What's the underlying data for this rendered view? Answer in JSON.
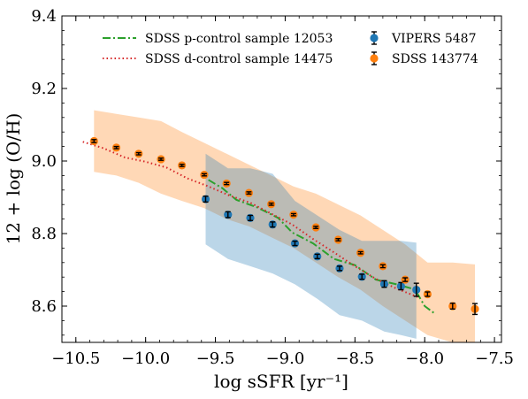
{
  "chart_data": {
    "type": "scatter",
    "xlabel": "log sSFR [yr⁻¹]",
    "ylabel": "12 + log (O/H)",
    "xlim": [
      -10.6,
      -7.45
    ],
    "ylim": [
      8.5,
      9.4
    ],
    "xticks": [
      -10.5,
      -10.0,
      -9.5,
      -9.0,
      -8.5,
      -8.0,
      -7.5
    ],
    "xtick_labels": [
      "−10.5",
      "−10.0",
      "−9.5",
      "−9.0",
      "−8.5",
      "−8.0",
      "−7.5"
    ],
    "yticks": [
      8.6,
      8.8,
      9.0,
      9.2,
      9.4
    ],
    "ytick_labels": [
      "8.6",
      "8.8",
      "9.0",
      "9.2",
      "9.4"
    ],
    "grid": false,
    "legend_position": "top",
    "series": [
      {
        "name": "VIPERS 5487",
        "kind": "errorbar",
        "color": "#1f77b4",
        "x": [
          -9.57,
          -9.41,
          -9.25,
          -9.09,
          -8.93,
          -8.77,
          -8.61,
          -8.45,
          -8.29,
          -8.17,
          -8.06
        ],
        "y": [
          8.895,
          8.852,
          8.843,
          8.825,
          8.773,
          8.737,
          8.704,
          8.681,
          8.661,
          8.655,
          8.645
        ],
        "yerr": [
          0.008,
          0.008,
          0.007,
          0.007,
          0.006,
          0.006,
          0.006,
          0.007,
          0.009,
          0.01,
          0.018
        ]
      },
      {
        "name": "SDSS 143774",
        "kind": "errorbar",
        "color": "#ff7f0e",
        "x": [
          -10.37,
          -10.21,
          -10.05,
          -9.89,
          -9.74,
          -9.58,
          -9.42,
          -9.26,
          -9.1,
          -8.94,
          -8.78,
          -8.62,
          -8.46,
          -8.3,
          -8.14,
          -7.98,
          -7.8,
          -7.64
        ],
        "y": [
          9.055,
          9.037,
          9.02,
          9.005,
          8.988,
          8.962,
          8.938,
          8.912,
          8.881,
          8.852,
          8.817,
          8.783,
          8.747,
          8.71,
          8.673,
          8.633,
          8.6,
          8.592
        ],
        "yerr": [
          0.004,
          0.003,
          0.003,
          0.003,
          0.003,
          0.003,
          0.003,
          0.003,
          0.003,
          0.003,
          0.003,
          0.003,
          0.003,
          0.004,
          0.005,
          0.006,
          0.008,
          0.015
        ]
      },
      {
        "name": "SDSS p-control sample 12053",
        "kind": "line",
        "style": "dashdot",
        "color": "#2ca02c",
        "x": [
          -9.55,
          -9.45,
          -9.35,
          -9.2,
          -9.05,
          -8.95,
          -8.8,
          -8.65,
          -8.5,
          -8.35,
          -8.2,
          -8.07,
          -8.0,
          -7.93
        ],
        "y": [
          8.948,
          8.925,
          8.893,
          8.872,
          8.843,
          8.803,
          8.773,
          8.73,
          8.713,
          8.673,
          8.66,
          8.646,
          8.6,
          8.58
        ]
      },
      {
        "name": "SDSS d-control sample 14475",
        "kind": "line",
        "style": "dotted",
        "color": "#d62728",
        "x": [
          -10.45,
          -10.3,
          -10.15,
          -10.0,
          -9.85,
          -9.7,
          -9.55,
          -9.4,
          -9.25,
          -9.1,
          -8.95,
          -8.8,
          -8.65,
          -8.5,
          -8.35,
          -8.2,
          -8.05
        ],
        "y": [
          9.053,
          9.035,
          9.01,
          8.998,
          8.982,
          8.952,
          8.93,
          8.905,
          8.885,
          8.855,
          8.825,
          8.785,
          8.748,
          8.71,
          8.675,
          8.648,
          8.625
        ]
      }
    ],
    "bands": [
      {
        "for": "SDSS 143774",
        "color": "#ff7f0e",
        "opacity": 0.3,
        "x": [
          -10.37,
          -10.21,
          -10.05,
          -9.89,
          -9.74,
          -9.58,
          -9.42,
          -9.26,
          -9.1,
          -8.94,
          -8.78,
          -8.62,
          -8.46,
          -8.3,
          -8.14,
          -7.98,
          -7.8,
          -7.64
        ],
        "upper": [
          9.14,
          9.13,
          9.12,
          9.11,
          9.08,
          9.05,
          9.02,
          8.99,
          8.96,
          8.93,
          8.91,
          8.88,
          8.85,
          8.81,
          8.77,
          8.72,
          8.72,
          8.715
        ],
        "lower": [
          8.97,
          8.96,
          8.94,
          8.91,
          8.89,
          8.87,
          8.84,
          8.82,
          8.79,
          8.76,
          8.72,
          8.68,
          8.645,
          8.6,
          8.56,
          8.52,
          8.5,
          8.5
        ]
      },
      {
        "for": "VIPERS 5487",
        "color": "#1f77b4",
        "opacity": 0.3,
        "x": [
          -9.57,
          -9.41,
          -9.25,
          -9.09,
          -8.93,
          -8.77,
          -8.61,
          -8.45,
          -8.29,
          -8.17,
          -8.06
        ],
        "upper": [
          9.02,
          8.98,
          8.98,
          8.965,
          8.89,
          8.85,
          8.81,
          8.78,
          8.78,
          8.78,
          8.775
        ],
        "lower": [
          8.77,
          8.73,
          8.71,
          8.69,
          8.66,
          8.62,
          8.575,
          8.56,
          8.53,
          8.52,
          8.51
        ]
      }
    ]
  }
}
